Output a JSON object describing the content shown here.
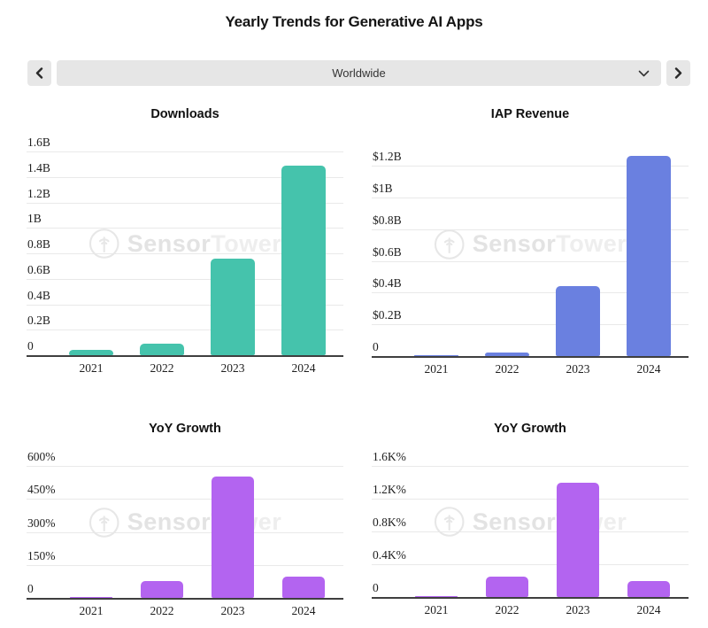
{
  "page_title": "Yearly Trends for Generative AI Apps",
  "selector": {
    "value": "Worldwide",
    "prev_icon": "chevron-left",
    "next_icon": "chevron-right",
    "dropdown_icon": "chevron-down"
  },
  "watermark": {
    "brand_primary": "Sensor",
    "brand_secondary": "Tower",
    "logo_icon": "sensor-tower-broadcast-circle"
  },
  "chart_data": [
    {
      "type": "bar",
      "title": "Downloads",
      "categories": [
        "2021",
        "2022",
        "2023",
        "2024"
      ],
      "values": [
        0.04,
        0.09,
        0.76,
        1.49
      ],
      "unit": "billions of downloads",
      "bar_color": "#45c3ac",
      "ymax": 1.6,
      "ylim": [
        0,
        1.6
      ],
      "grid": true,
      "yticks": [
        {
          "value": 0,
          "label": "0"
        },
        {
          "value": 0.2,
          "label": "0.2B"
        },
        {
          "value": 0.4,
          "label": "0.4B"
        },
        {
          "value": 0.6,
          "label": "0.6B"
        },
        {
          "value": 0.8,
          "label": "0.8B"
        },
        {
          "value": 1.0,
          "label": "1B"
        },
        {
          "value": 1.2,
          "label": "1.2B"
        },
        {
          "value": 1.4,
          "label": "1.4B"
        },
        {
          "value": 1.6,
          "label": "1.6B"
        }
      ]
    },
    {
      "type": "bar",
      "title": "IAP Revenue",
      "categories": [
        "2021",
        "2022",
        "2023",
        "2024"
      ],
      "values": [
        0.008,
        0.025,
        0.44,
        1.26
      ],
      "unit": "billions of dollars",
      "bar_color": "#6a80e0",
      "ymax": 1.2,
      "ylim": [
        0,
        1.2
      ],
      "grid": true,
      "yticks": [
        {
          "value": 0,
          "label": "0"
        },
        {
          "value": 0.2,
          "label": "$0.2B"
        },
        {
          "value": 0.4,
          "label": "$0.4B"
        },
        {
          "value": 0.6,
          "label": "$0.6B"
        },
        {
          "value": 0.8,
          "label": "$0.8B"
        },
        {
          "value": 1.0,
          "label": "$1B"
        },
        {
          "value": 1.2,
          "label": "$1.2B"
        }
      ]
    },
    {
      "type": "bar",
      "title": "YoY Growth",
      "categories": [
        "2021",
        "2022",
        "2023",
        "2024"
      ],
      "values": [
        6,
        75,
        550,
        95
      ],
      "unit": "percent (downloads growth)",
      "bar_color": "#b364f0",
      "ymax": 600,
      "ylim": [
        0,
        600
      ],
      "grid": true,
      "yticks": [
        {
          "value": 0,
          "label": "0"
        },
        {
          "value": 150,
          "label": "150%"
        },
        {
          "value": 300,
          "label": "300%"
        },
        {
          "value": 450,
          "label": "450%"
        },
        {
          "value": 600,
          "label": "600%"
        }
      ]
    },
    {
      "type": "bar",
      "title": "YoY Growth",
      "categories": [
        "2021",
        "2022",
        "2023",
        "2024"
      ],
      "values": [
        10,
        250,
        1390,
        200
      ],
      "unit": "percent (IAP revenue growth)",
      "bar_color": "#b364f0",
      "ymax": 1600,
      "ylim": [
        0,
        1600
      ],
      "grid": true,
      "yticks": [
        {
          "value": 0,
          "label": "0"
        },
        {
          "value": 400,
          "label": "0.4K%"
        },
        {
          "value": 800,
          "label": "0.8K%"
        },
        {
          "value": 1200,
          "label": "1.2K%"
        },
        {
          "value": 1600,
          "label": "1.6K%"
        }
      ]
    }
  ]
}
